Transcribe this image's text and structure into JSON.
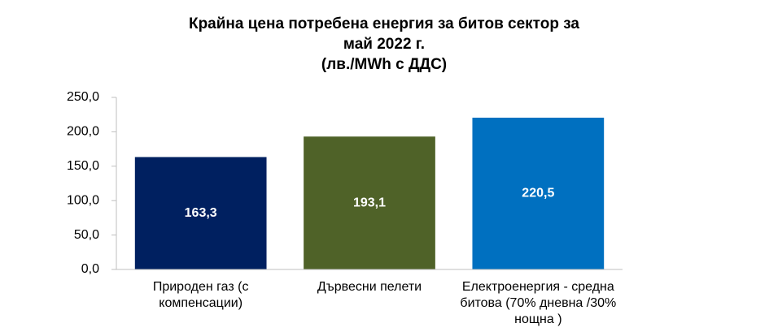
{
  "chart_data": {
    "type": "bar",
    "title": [
      "Крайна цена потребена енергия за битов сектор за",
      "май 2022 г.",
      "(лв./MWh с ДДС)"
    ],
    "categories": [
      "Природен газ (с компенсации)",
      "Дървесни пелети",
      "Електроенергия - средна битова (70% дневна /30% нощна )"
    ],
    "values": [
      163.3,
      193.1,
      220.5
    ],
    "value_labels": [
      "163,3",
      "193,1",
      "220,5"
    ],
    "colors": [
      "#002060",
      "#4f6228",
      "#0070c0"
    ],
    "ylim": [
      0,
      250
    ],
    "yticks": [
      {
        "value": 0,
        "label": "0,0"
      },
      {
        "value": 50,
        "label": "50,0"
      },
      {
        "value": 100,
        "label": "100,0"
      },
      {
        "value": 150,
        "label": "150,0"
      },
      {
        "value": 200,
        "label": "200,0"
      },
      {
        "value": 250,
        "label": "250,0"
      }
    ],
    "grid": false
  }
}
